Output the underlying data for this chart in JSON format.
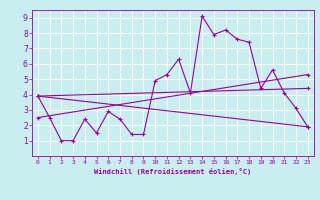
{
  "xlabel": "Windchill (Refroidissement éolien,°C)",
  "background_color": "#c8eef0",
  "grid_color": "#ffffff",
  "line_color": "#990099",
  "xlim": [
    -0.5,
    23.5
  ],
  "ylim": [
    0,
    9.5
  ],
  "xticks": [
    0,
    1,
    2,
    3,
    4,
    5,
    6,
    7,
    8,
    9,
    10,
    11,
    12,
    13,
    14,
    15,
    16,
    17,
    18,
    19,
    20,
    21,
    22,
    23
  ],
  "yticks": [
    1,
    2,
    3,
    4,
    5,
    6,
    7,
    8,
    9
  ],
  "line1_x": [
    0,
    1,
    2,
    3,
    4,
    5,
    6,
    7,
    8,
    9,
    10,
    11,
    12,
    13,
    14,
    15,
    16,
    17,
    18,
    19,
    20,
    21,
    22,
    23
  ],
  "line1_y": [
    3.9,
    2.5,
    1.0,
    1.0,
    2.4,
    1.5,
    2.9,
    2.4,
    1.4,
    1.4,
    4.9,
    5.3,
    6.3,
    4.1,
    9.1,
    7.9,
    8.2,
    7.6,
    7.4,
    4.4,
    5.6,
    4.1,
    3.1,
    1.9
  ],
  "line2_x": [
    0,
    23
  ],
  "line2_y": [
    3.9,
    4.4
  ],
  "line3_x": [
    0,
    23
  ],
  "line3_y": [
    3.9,
    1.9
  ],
  "line4_x": [
    0,
    23
  ],
  "line4_y": [
    2.5,
    5.3
  ]
}
